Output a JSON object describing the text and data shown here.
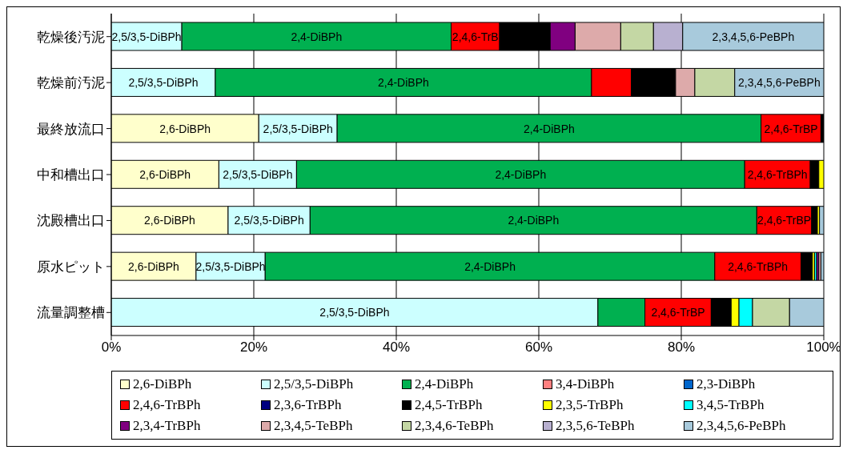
{
  "chart_data": {
    "type": "bar",
    "orientation": "horizontal",
    "stacked": true,
    "categories": [
      "乾燥後汚泥",
      "乾燥前汚泥",
      "最終放流口",
      "中和槽出口",
      "沈殿槽出口",
      "原水ピット",
      "流量調整槽"
    ],
    "xlim": [
      0,
      100
    ],
    "xticks": [
      {
        "value": 0,
        "label": "0%"
      },
      {
        "value": 20,
        "label": "20%"
      },
      {
        "value": 40,
        "label": "40%"
      },
      {
        "value": 60,
        "label": "60%"
      },
      {
        "value": 80,
        "label": "80%"
      },
      {
        "value": 100,
        "label": "100%"
      }
    ],
    "grid": "x",
    "legend": "bottom",
    "annotations": [
      "2,5/3,5-DiBPh",
      "2,4-DiBPh",
      "2,4,6-TrB",
      "2,3,4,5,6-PeBPh",
      "2,5/3,5-DiBPh",
      "2,4-DiBPh",
      "2,3,4,5,6-PeBPh",
      "2,6-DiBPh",
      "2,5/3,5-DiBPh",
      "2,4-DiBPh",
      "2,4,6-TrBP",
      "2,6-DiBPh",
      "2,5/3,5-DiBPh",
      "2,4-DiBPh",
      "2,4,6-TrBPh",
      "2,6-DiBPh",
      "2,5/3,5-DiBPh",
      "2,4-DiBPh",
      "2,4,6-TrBP",
      "2,6-DiBPh",
      "2,5/3,5-DiBPh",
      "2,4-DiBPh",
      "2,4,6-TrBPh",
      "2,5/3,5-DiBPh",
      "2,4,6-TrBP"
    ],
    "series": [
      {
        "name": "2,6-DiBPh",
        "color": "#ffffcc",
        "values": [
          null,
          null,
          20.7,
          15.1,
          16.4,
          11.9,
          null
        ]
      },
      {
        "name": "2,5/3,5-DiBPh",
        "color": "#ccffff",
        "values": [
          9.9,
          14.6,
          11.0,
          10.9,
          11.5,
          9.7,
          68.3
        ]
      },
      {
        "name": "2,4-DiBPh",
        "color": "#00b050",
        "values": [
          37.8,
          52.8,
          59.5,
          62.9,
          62.7,
          63.1,
          6.6
        ]
      },
      {
        "name": "3,4-DiBPh",
        "color": "#ff8080",
        "values": [
          null,
          null,
          null,
          null,
          null,
          null,
          null
        ]
      },
      {
        "name": "2,3-DiBPh",
        "color": "#0066cc",
        "values": [
          null,
          null,
          null,
          null,
          null,
          null,
          null
        ]
      },
      {
        "name": "2,4,6-TrBPh",
        "color": "#ff0000",
        "values": [
          6.8,
          5.6,
          8.4,
          9.2,
          7.7,
          12.1,
          9.3
        ]
      },
      {
        "name": "2,3,6-TrBPh",
        "color": "#000080",
        "values": [
          null,
          null,
          null,
          null,
          null,
          null,
          null
        ]
      },
      {
        "name": "2,4,5-TrBPh",
        "color": "#000000",
        "values": [
          7.1,
          6.2,
          0.4,
          1.2,
          0.8,
          1.6,
          2.8
        ]
      },
      {
        "name": "2,3,5-TrBPh",
        "color": "#ffff00",
        "values": [
          null,
          null,
          null,
          0.7,
          0.3,
          0.3,
          1.1
        ]
      },
      {
        "name": "3,4,5-TrBPh",
        "color": "#00ffff",
        "values": [
          null,
          null,
          null,
          null,
          null,
          0.3,
          1.9
        ]
      },
      {
        "name": "2,3,4-TrBPh",
        "color": "#800080",
        "values": [
          3.5,
          null,
          null,
          null,
          null,
          0.3,
          null
        ]
      },
      {
        "name": "2,3,4,5-TeBPh",
        "color": "#ddaaaa",
        "values": [
          6.4,
          2.7,
          null,
          null,
          null,
          0.3,
          null
        ]
      },
      {
        "name": "2,3,4,6-TeBPh",
        "color": "#c4d7a4",
        "values": [
          4.6,
          5.6,
          null,
          null,
          null,
          null,
          5.2
        ]
      },
      {
        "name": "2,3,5,6-TeBPh",
        "color": "#b8b0d0",
        "values": [
          4.1,
          null,
          null,
          null,
          null,
          null,
          null
        ]
      },
      {
        "name": "2,3,4,5,6-PeBPh",
        "color": "#a8cadc",
        "values": [
          19.8,
          12.5,
          null,
          null,
          0.6,
          0.4,
          4.8
        ]
      }
    ]
  }
}
